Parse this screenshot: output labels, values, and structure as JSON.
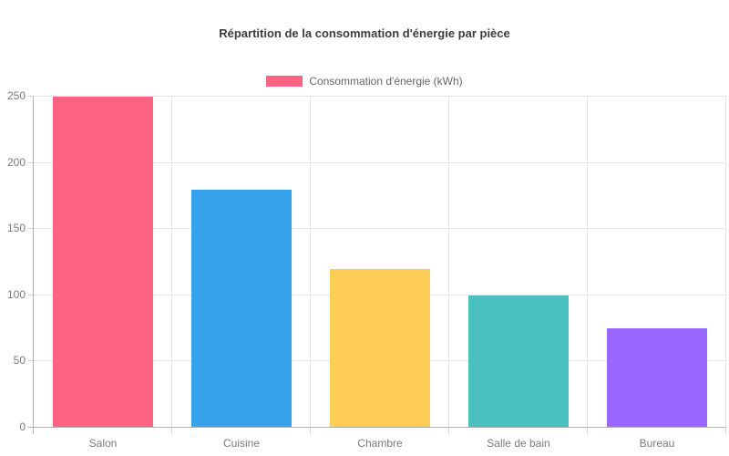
{
  "chart_data": {
    "type": "bar",
    "title": "Répartition de la consommation d'énergie par pièce",
    "categories": [
      "Salon",
      "Cuisine",
      "Chambre",
      "Salle de bain",
      "Bureau"
    ],
    "series": [
      {
        "name": "Consommation d'énergie (kWh)",
        "values": [
          250,
          180,
          120,
          100,
          75
        ],
        "colors": [
          "#ff6384",
          "#36a2eb",
          "#ffce56",
          "#4bc0c0",
          "#9966ff"
        ]
      }
    ],
    "xlabel": "",
    "ylabel": "",
    "ylim": [
      0,
      250
    ],
    "yticks": [
      0,
      50,
      100,
      150,
      200,
      250
    ],
    "grid": true,
    "legend_position": "top",
    "legend_swatch_color": "#ff6384"
  },
  "colors": {
    "background": "#ffffff",
    "title_text": "#3c3c3c",
    "legend_text": "#666666",
    "tick_text": "#7b7b7b",
    "gridline": "#e6e6e6",
    "tick_mark": "#d2d2d2",
    "axis_line": "#b0b0b0"
  }
}
